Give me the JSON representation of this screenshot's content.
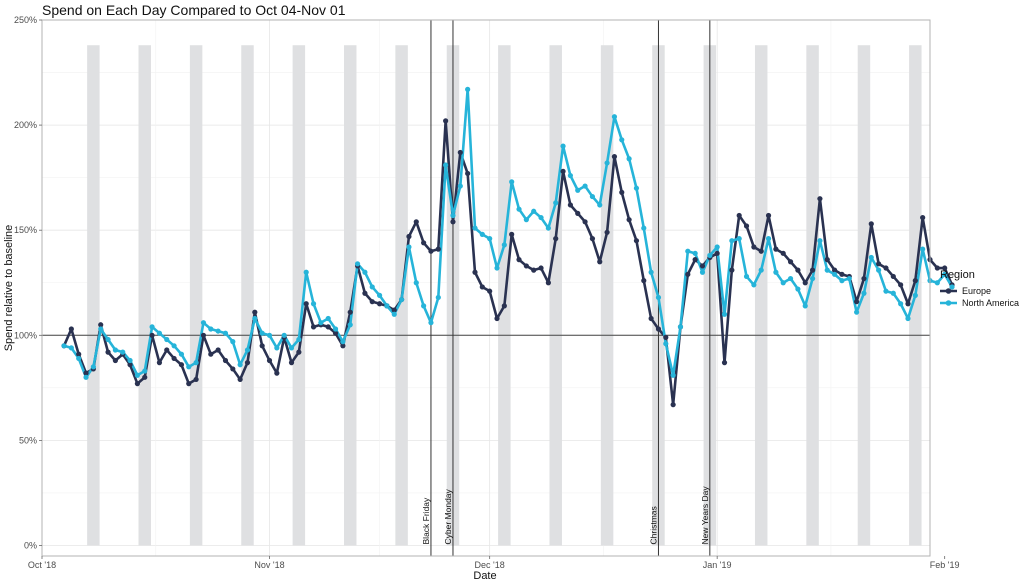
{
  "chart_data": {
    "type": "line",
    "title": "Spend on Each Day Compared to Oct 04-Nov 01",
    "xlabel": "Date",
    "ylabel": "Spend relative to baseline",
    "x_start": "2018-10-04",
    "xlim_days": [
      -3,
      118
    ],
    "ylim": [
      -5,
      250
    ],
    "y_ticks": [
      {
        "value": 0,
        "label": "0%"
      },
      {
        "value": 50,
        "label": "50%"
      },
      {
        "value": 100,
        "label": "100%"
      },
      {
        "value": 150,
        "label": "150%"
      },
      {
        "value": 200,
        "label": "200%"
      },
      {
        "value": 250,
        "label": "250%"
      }
    ],
    "x_ticks": [
      {
        "day": -3,
        "label": "Oct '18"
      },
      {
        "day": 28,
        "label": "Nov '18"
      },
      {
        "day": 58,
        "label": "Dec '18"
      },
      {
        "day": 89,
        "label": "Jan '19"
      },
      {
        "day": 120,
        "label": "Feb '19"
      }
    ],
    "baseline": 100,
    "weekend_band_top": 238,
    "weekend_bands": [
      4,
      11,
      18,
      25,
      32,
      39,
      46,
      53,
      60,
      67,
      74,
      81,
      88,
      95,
      102,
      109,
      116
    ],
    "events": [
      {
        "label": "Black Friday",
        "day": 50
      },
      {
        "label": "Cyber Monday",
        "day": 53
      },
      {
        "label": "Christmas",
        "day": 81
      },
      {
        "label": "New Years Day",
        "day": 88
      }
    ],
    "legend_title": "Region",
    "series": [
      {
        "name": "Europe",
        "color": "#2a3251",
        "values": [
          95,
          103,
          91,
          82,
          84,
          105,
          92,
          88,
          91,
          86,
          77,
          80,
          100,
          87,
          93,
          89,
          86,
          77,
          79,
          100,
          91,
          93,
          88,
          84,
          79,
          87,
          111,
          95,
          88,
          82,
          99,
          87,
          92,
          115,
          104,
          105,
          104,
          101,
          95,
          111,
          133,
          120,
          116,
          115,
          114,
          112,
          117,
          147,
          154,
          144,
          140,
          141,
          202,
          154,
          187,
          177,
          130,
          123,
          121,
          108,
          114,
          148,
          136,
          133,
          131,
          132,
          125,
          146,
          178,
          162,
          158,
          154,
          146,
          135,
          149,
          185,
          168,
          155,
          145,
          126,
          108,
          103,
          99,
          67,
          104,
          129,
          136,
          133,
          137,
          139,
          87,
          131,
          157,
          152,
          142,
          140,
          157,
          141,
          139,
          135,
          131,
          125,
          131,
          165,
          136,
          131,
          129,
          128,
          116,
          127,
          153,
          134,
          132,
          128,
          124,
          115,
          126,
          156,
          136,
          132,
          132,
          124
        ]
      },
      {
        "name": "North America",
        "color": "#26b4d9",
        "values": [
          95,
          94,
          89,
          80,
          85,
          103,
          98,
          93,
          92,
          88,
          81,
          83,
          104,
          101,
          98,
          95,
          91,
          85,
          87,
          106,
          103,
          102,
          101,
          97,
          86,
          93,
          108,
          101,
          100,
          94,
          100,
          94,
          98,
          130,
          115,
          106,
          108,
          103,
          97,
          105,
          134,
          130,
          123,
          119,
          114,
          110,
          117,
          142,
          125,
          114,
          106,
          118,
          181,
          157,
          171,
          217,
          151,
          148,
          146,
          132,
          143,
          173,
          160,
          155,
          159,
          156,
          151,
          163,
          190,
          176,
          169,
          171,
          166,
          162,
          182,
          204,
          193,
          184,
          170,
          151,
          130,
          118,
          96,
          81,
          104,
          140,
          139,
          130,
          138,
          142,
          110,
          145,
          146,
          128,
          124,
          131,
          146,
          130,
          125,
          127,
          122,
          114,
          127,
          145,
          131,
          129,
          126,
          127,
          111,
          120,
          137,
          131,
          121,
          120,
          115,
          108,
          119,
          141,
          126,
          125,
          129,
          123
        ]
      }
    ]
  }
}
